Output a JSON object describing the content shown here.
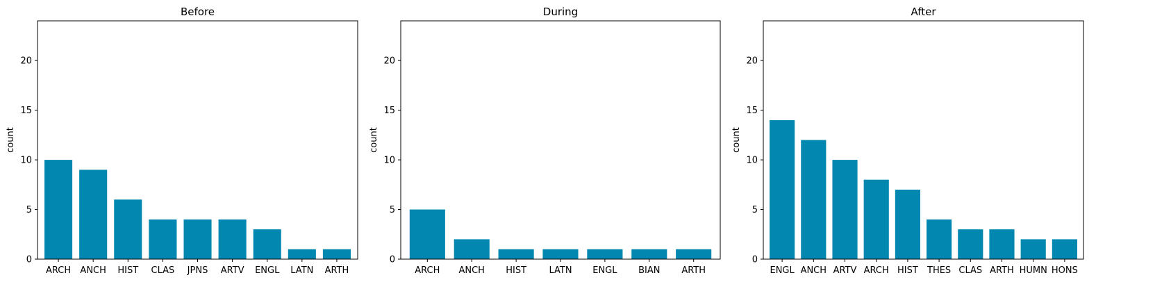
{
  "chart_data": [
    {
      "type": "bar",
      "title": "Before",
      "xlabel": "",
      "ylabel": "count",
      "ylim": [
        0,
        24
      ],
      "yticks": [
        0,
        5,
        10,
        15,
        20
      ],
      "categories": [
        "ARCH",
        "ANCH",
        "HIST",
        "CLAS",
        "JPNS",
        "ARTV",
        "ENGL",
        "LATN",
        "ARTH"
      ],
      "values": [
        10,
        9,
        6,
        4,
        4,
        4,
        3,
        1,
        1
      ],
      "color": "#0288b0",
      "grid": false
    },
    {
      "type": "bar",
      "title": "During",
      "xlabel": "",
      "ylabel": "count",
      "ylim": [
        0,
        24
      ],
      "yticks": [
        0,
        5,
        10,
        15,
        20
      ],
      "categories": [
        "ARCH",
        "ANCH",
        "HIST",
        "LATN",
        "ENGL",
        "BIAN",
        "ARTH"
      ],
      "values": [
        5,
        2,
        1,
        1,
        1,
        1,
        1
      ],
      "color": "#0288b0",
      "grid": false
    },
    {
      "type": "bar",
      "title": "After",
      "xlabel": "",
      "ylabel": "count",
      "ylim": [
        0,
        24
      ],
      "yticks": [
        0,
        5,
        10,
        15,
        20
      ],
      "categories": [
        "ENGL",
        "ANCH",
        "ARTV",
        "ARCH",
        "HIST",
        "THES",
        "CLAS",
        "ARTH",
        "HUMN",
        "HONS"
      ],
      "values": [
        14,
        12,
        10,
        8,
        7,
        4,
        3,
        3,
        2,
        2
      ],
      "color": "#0288b0",
      "grid": false
    }
  ]
}
